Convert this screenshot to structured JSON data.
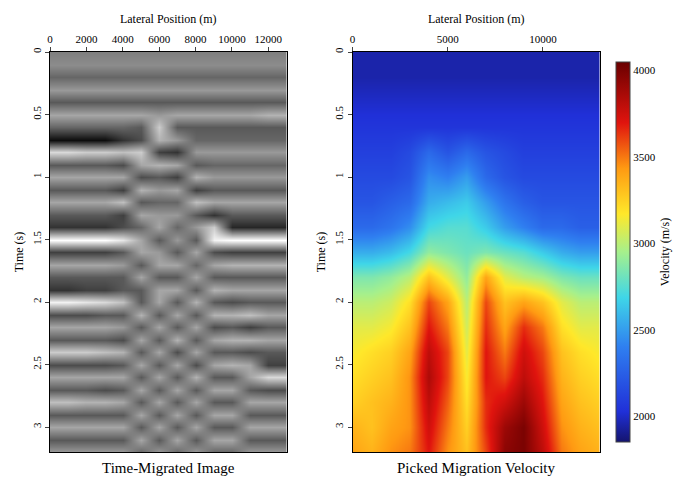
{
  "chart_data": [
    {
      "type": "heatmap",
      "title": "Time-Migrated Image",
      "x_label": "Lateral Position (m)",
      "y_label": "Time (s)",
      "color": "gray",
      "xlim": [
        0,
        13000
      ],
      "xticks": [
        0,
        2000,
        4000,
        6000,
        8000,
        10000,
        12000
      ],
      "ylim": [
        3.2,
        0
      ],
      "yticks": [
        0,
        0.5,
        1,
        1.5,
        2,
        2.5,
        3
      ],
      "zlim": [
        -1,
        1
      ],
      "x": [
        0,
        1000,
        2000,
        3000,
        4000,
        5000,
        6000,
        7000,
        8000,
        9000,
        10000,
        11000,
        12000,
        13000
      ],
      "y": [
        0,
        0.1,
        0.2,
        0.3,
        0.4,
        0.5,
        0.6,
        0.7,
        0.8,
        0.9,
        1.0,
        1.1,
        1.2,
        1.3,
        1.4,
        1.5,
        1.6,
        1.7,
        1.8,
        1.9,
        2.0,
        2.1,
        2.2,
        2.3,
        2.4,
        2.5,
        2.6,
        2.7,
        2.8,
        2.9,
        3.0,
        3.1,
        3.2
      ],
      "z": [
        [
          0,
          0,
          0,
          0,
          0,
          0,
          0,
          0,
          0,
          0,
          0,
          0,
          0,
          0
        ],
        [
          0.1,
          0.1,
          0.1,
          0.1,
          0.1,
          0.1,
          0.1,
          0.1,
          0.1,
          0.1,
          0.1,
          0.1,
          0.1,
          0.1
        ],
        [
          -0.2,
          -0.2,
          -0.2,
          -0.2,
          -0.2,
          -0.2,
          -0.2,
          -0.2,
          -0.2,
          -0.2,
          -0.2,
          -0.2,
          -0.2,
          -0.2
        ],
        [
          0.2,
          0.2,
          0.2,
          0.2,
          0.2,
          0.2,
          0.2,
          0.2,
          0.2,
          0.2,
          0.2,
          0.2,
          0.2,
          0.2
        ],
        [
          -0.3,
          -0.3,
          -0.3,
          -0.3,
          -0.3,
          -0.3,
          -0.3,
          -0.3,
          -0.3,
          -0.3,
          -0.3,
          -0.3,
          -0.3,
          -0.3
        ],
        [
          0.3,
          0.3,
          0.3,
          0.3,
          0.3,
          0.3,
          0.2,
          0.3,
          0.3,
          0.3,
          0.3,
          0.3,
          0.4,
          0.4
        ],
        [
          -0.2,
          -0.2,
          -0.2,
          -0.2,
          -0.2,
          -0.3,
          0.6,
          -0.3,
          -0.3,
          -0.3,
          -0.3,
          -0.3,
          -0.3,
          -0.3
        ],
        [
          -0.9,
          -0.9,
          -0.9,
          -0.9,
          -0.6,
          -0.4,
          0.4,
          0.2,
          -0.2,
          -0.2,
          -0.2,
          -0.2,
          -0.2,
          -0.2
        ],
        [
          0.7,
          0.7,
          0.6,
          0.6,
          0.5,
          0.6,
          -0.5,
          -0.6,
          0.2,
          0.2,
          0.2,
          0.2,
          0.2,
          0.2
        ],
        [
          -0.3,
          -0.3,
          -0.3,
          -0.3,
          -0.4,
          0.3,
          0.4,
          0.3,
          -0.3,
          -0.2,
          -0.2,
          -0.2,
          -0.2,
          -0.2
        ],
        [
          0.3,
          0.3,
          0.3,
          0.3,
          0.3,
          -0.4,
          -0.3,
          -0.5,
          0.4,
          0.2,
          0.2,
          0.2,
          0.2,
          0.2
        ],
        [
          -0.3,
          -0.3,
          -0.3,
          -0.3,
          -0.5,
          0.4,
          0.2,
          0.3,
          -0.5,
          -0.3,
          -0.3,
          -0.3,
          -0.3,
          -0.3
        ],
        [
          0.3,
          0.3,
          0.3,
          0.3,
          0.5,
          -0.3,
          -0.2,
          -0.2,
          0.5,
          0.3,
          0.3,
          0.3,
          0.3,
          0.3
        ],
        [
          -0.3,
          -0.3,
          -0.3,
          -0.3,
          -0.5,
          0.3,
          0.2,
          0.2,
          -0.3,
          -0.6,
          -0.3,
          -0.3,
          -0.3,
          -0.3
        ],
        [
          -0.6,
          -0.6,
          -0.6,
          -0.6,
          -0.4,
          -0.2,
          0.3,
          -0.2,
          0.2,
          0.6,
          -0.7,
          -0.7,
          -0.7,
          -0.7
        ],
        [
          1,
          1,
          1,
          1,
          0.8,
          0.3,
          -0.3,
          0.2,
          -0.3,
          0.9,
          1,
          1,
          1,
          1
        ],
        [
          -0.5,
          -0.5,
          -0.5,
          -0.5,
          -0.3,
          0.3,
          0.2,
          -0.3,
          0.3,
          -0.4,
          -0.5,
          -0.5,
          -0.5,
          -0.5
        ],
        [
          0.3,
          0.3,
          0.3,
          0.3,
          0.2,
          -0.3,
          0.3,
          0.3,
          -0.2,
          0.3,
          0.4,
          0.4,
          0.4,
          0.4
        ],
        [
          -0.3,
          -0.3,
          -0.3,
          -0.3,
          -0.3,
          0.3,
          -0.3,
          -0.3,
          0.3,
          -0.3,
          -0.3,
          -0.3,
          -0.3,
          -0.3
        ],
        [
          -0.6,
          -0.6,
          -0.5,
          -0.5,
          -0.3,
          -0.3,
          0.3,
          0.3,
          -0.3,
          0.4,
          0.3,
          0.3,
          0.3,
          0.3
        ],
        [
          0.9,
          0.9,
          0.8,
          0.7,
          0.5,
          -0.3,
          0.3,
          -0.3,
          0.4,
          -0.3,
          -0.4,
          -0.3,
          -0.3,
          -0.3
        ],
        [
          -0.4,
          -0.4,
          -0.4,
          -0.3,
          -0.3,
          0.4,
          -0.3,
          0.3,
          -0.3,
          0.4,
          0.4,
          0.5,
          0.3,
          0.3
        ],
        [
          0.3,
          0.3,
          0.3,
          0.3,
          0.2,
          -0.3,
          0.3,
          -0.3,
          0.3,
          -0.4,
          -0.3,
          -0.5,
          -0.3,
          -0.3
        ],
        [
          -0.3,
          -0.3,
          -0.3,
          -0.3,
          -0.4,
          0.3,
          -0.3,
          0.4,
          -0.3,
          0.3,
          0.4,
          0.4,
          0.3,
          0.3
        ],
        [
          0.6,
          0.6,
          0.6,
          0.5,
          0.4,
          -0.3,
          0.3,
          -0.4,
          0.3,
          -0.3,
          -0.3,
          -0.4,
          -0.3,
          -0.3
        ],
        [
          -0.4,
          -0.4,
          -0.4,
          -0.4,
          -0.3,
          0.3,
          -0.3,
          0.3,
          -0.4,
          0.3,
          0.4,
          0.3,
          -0.5,
          -0.5
        ],
        [
          0.3,
          0.3,
          0.3,
          0.3,
          0.3,
          -0.3,
          0.3,
          -0.3,
          0.4,
          -0.3,
          -0.3,
          0.3,
          0.7,
          0.7
        ],
        [
          -0.3,
          -0.3,
          -0.3,
          -0.4,
          -0.3,
          0.3,
          -0.3,
          0.3,
          -0.3,
          0.3,
          0.3,
          -0.3,
          -0.4,
          -0.4
        ],
        [
          0.5,
          0.5,
          0.4,
          0.4,
          0.3,
          -0.3,
          0.3,
          -0.3,
          0.3,
          -0.3,
          -0.3,
          0.3,
          0.3,
          0.3
        ],
        [
          -0.3,
          -0.3,
          -0.3,
          -0.3,
          -0.3,
          0.3,
          -0.3,
          0.3,
          -0.3,
          0.3,
          0.3,
          -0.3,
          -0.3,
          -0.3
        ],
        [
          0.3,
          0.3,
          0.3,
          0.3,
          0.3,
          -0.3,
          0.3,
          -0.3,
          0.3,
          -0.3,
          -0.3,
          0.3,
          0.3,
          0.3
        ],
        [
          -0.3,
          -0.3,
          -0.3,
          -0.3,
          -0.3,
          0.3,
          -0.3,
          0.3,
          -0.3,
          0.3,
          0.3,
          -0.3,
          -0.3,
          -0.3
        ],
        [
          0.2,
          0.2,
          0.2,
          0.2,
          0.2,
          -0.2,
          0.2,
          -0.2,
          0.2,
          -0.2,
          -0.2,
          0.2,
          0.2,
          0.2
        ]
      ]
    },
    {
      "type": "heatmap",
      "title": "Picked Migration Velocity",
      "x_label": "Lateral Position (m)",
      "y_label": "Time (s)",
      "color": "jet",
      "xlim": [
        0,
        13000
      ],
      "xticks": [
        0,
        5000,
        10000
      ],
      "ylim": [
        3.2,
        0
      ],
      "yticks": [
        0,
        0.5,
        1,
        1.5,
        2,
        2.5,
        3
      ],
      "colorbar": {
        "title": "Velocity (m/s)",
        "range": [
          1850,
          4050
        ],
        "ticks": [
          2000,
          2500,
          3000,
          3500,
          4000
        ]
      },
      "x": [
        0,
        1000,
        2000,
        3000,
        4000,
        5000,
        6000,
        7000,
        8000,
        9000,
        10000,
        11000,
        12000,
        13000
      ],
      "y": [
        0,
        0.2,
        0.4,
        0.6,
        0.8,
        1.0,
        1.2,
        1.4,
        1.6,
        1.8,
        2.0,
        2.2,
        2.4,
        2.6,
        2.8,
        3.0,
        3.2
      ],
      "z": [
        [
          1950,
          1950,
          1950,
          1950,
          1950,
          1950,
          1950,
          1950,
          1950,
          1950,
          1950,
          1950,
          1950,
          1950
        ],
        [
          1950,
          1950,
          1950,
          1950,
          1950,
          1950,
          1950,
          1950,
          1950,
          1950,
          1950,
          1950,
          1950,
          1950
        ],
        [
          2000,
          2000,
          2000,
          2000,
          2000,
          2000,
          2000,
          2000,
          2000,
          2000,
          2000,
          2000,
          2000,
          2000
        ],
        [
          2050,
          2050,
          2050,
          2050,
          2050,
          2050,
          2050,
          2050,
          2050,
          2050,
          2050,
          2050,
          2050,
          2050
        ],
        [
          2100,
          2100,
          2100,
          2150,
          2300,
          2200,
          2300,
          2200,
          2150,
          2100,
          2100,
          2100,
          2100,
          2100
        ],
        [
          2150,
          2150,
          2150,
          2200,
          2450,
          2400,
          2500,
          2300,
          2200,
          2150,
          2150,
          2150,
          2150,
          2150
        ],
        [
          2200,
          2200,
          2250,
          2300,
          2550,
          2600,
          2650,
          2500,
          2350,
          2250,
          2200,
          2200,
          2200,
          2200
        ],
        [
          2300,
          2300,
          2350,
          2450,
          2700,
          2750,
          2750,
          2650,
          2500,
          2400,
          2300,
          2300,
          2250,
          2250
        ],
        [
          2550,
          2550,
          2600,
          2700,
          2900,
          2850,
          2800,
          2850,
          2800,
          2750,
          2650,
          2550,
          2500,
          2500
        ],
        [
          2850,
          2850,
          2900,
          3000,
          3300,
          3100,
          2900,
          3400,
          3100,
          3000,
          2950,
          2850,
          2800,
          2800
        ],
        [
          3000,
          3000,
          3050,
          3200,
          3600,
          3400,
          3000,
          3600,
          3300,
          3400,
          3300,
          3100,
          3000,
          3000
        ],
        [
          3100,
          3100,
          3150,
          3300,
          3700,
          3500,
          3050,
          3650,
          3400,
          3650,
          3500,
          3200,
          3100,
          3100
        ],
        [
          3150,
          3200,
          3250,
          3400,
          3800,
          3600,
          3100,
          3700,
          3500,
          3750,
          3600,
          3300,
          3200,
          3150
        ],
        [
          3200,
          3250,
          3300,
          3450,
          3850,
          3600,
          3150,
          3700,
          3600,
          3800,
          3650,
          3350,
          3250,
          3200
        ],
        [
          3250,
          3300,
          3350,
          3450,
          3800,
          3550,
          3200,
          3650,
          3750,
          3900,
          3700,
          3400,
          3300,
          3250
        ],
        [
          3350,
          3300,
          3400,
          3450,
          3750,
          3500,
          3250,
          3650,
          3900,
          4000,
          3750,
          3450,
          3350,
          3300
        ],
        [
          3400,
          3350,
          3450,
          3500,
          3700,
          3450,
          3300,
          3600,
          3950,
          4000,
          3800,
          3500,
          3400,
          3350
        ]
      ]
    }
  ]
}
